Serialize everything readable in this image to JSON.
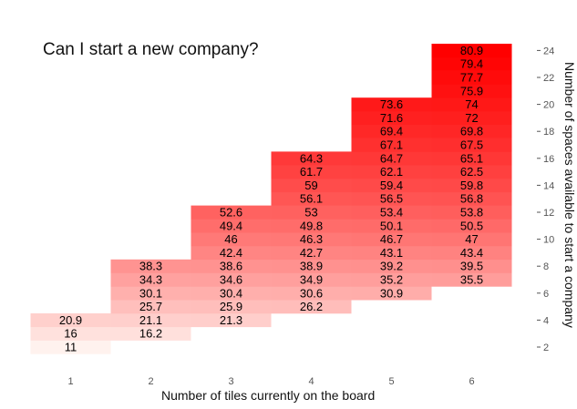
{
  "chart_data": {
    "type": "heatmap",
    "title": "Can I start a new company?",
    "xlabel": "Number of tiles currently on the board",
    "ylabel": "Number of spaces available to start a company",
    "x_ticks": [
      "1",
      "2",
      "3",
      "4",
      "5",
      "6"
    ],
    "y_ticks": [
      "2",
      "4",
      "6",
      "8",
      "10",
      "12",
      "14",
      "16",
      "18",
      "20",
      "22",
      "24"
    ],
    "xlim": [
      0.5,
      6.5
    ],
    "ylim": [
      1,
      25
    ],
    "y_axis_side": "right",
    "colorscale": [
      "#fff2ee",
      "#ff0000"
    ],
    "value_range": [
      11,
      80.9
    ],
    "cells": [
      {
        "x": 1,
        "y": 2,
        "value": 11
      },
      {
        "x": 1,
        "y": 3,
        "value": 16
      },
      {
        "x": 1,
        "y": 4,
        "value": 20.9
      },
      {
        "x": 2,
        "y": 3,
        "value": 16.2
      },
      {
        "x": 2,
        "y": 4,
        "value": 21.1
      },
      {
        "x": 2,
        "y": 5,
        "value": 25.7
      },
      {
        "x": 2,
        "y": 6,
        "value": 30.1
      },
      {
        "x": 2,
        "y": 7,
        "value": 34.3
      },
      {
        "x": 2,
        "y": 8,
        "value": 38.3
      },
      {
        "x": 3,
        "y": 4,
        "value": 21.3
      },
      {
        "x": 3,
        "y": 5,
        "value": 25.9
      },
      {
        "x": 3,
        "y": 6,
        "value": 30.4
      },
      {
        "x": 3,
        "y": 7,
        "value": 34.6
      },
      {
        "x": 3,
        "y": 8,
        "value": 38.6
      },
      {
        "x": 3,
        "y": 9,
        "value": 42.4
      },
      {
        "x": 3,
        "y": 10,
        "value": 46
      },
      {
        "x": 3,
        "y": 11,
        "value": 49.4
      },
      {
        "x": 3,
        "y": 12,
        "value": 52.6
      },
      {
        "x": 4,
        "y": 5,
        "value": 26.2
      },
      {
        "x": 4,
        "y": 6,
        "value": 30.6
      },
      {
        "x": 4,
        "y": 7,
        "value": 34.9
      },
      {
        "x": 4,
        "y": 8,
        "value": 38.9
      },
      {
        "x": 4,
        "y": 9,
        "value": 42.7
      },
      {
        "x": 4,
        "y": 10,
        "value": 46.3
      },
      {
        "x": 4,
        "y": 11,
        "value": 49.8
      },
      {
        "x": 4,
        "y": 12,
        "value": 53
      },
      {
        "x": 4,
        "y": 13,
        "value": 56.1
      },
      {
        "x": 4,
        "y": 14,
        "value": 59
      },
      {
        "x": 4,
        "y": 15,
        "value": 61.7
      },
      {
        "x": 4,
        "y": 16,
        "value": 64.3
      },
      {
        "x": 5,
        "y": 6,
        "value": 30.9
      },
      {
        "x": 5,
        "y": 7,
        "value": 35.2
      },
      {
        "x": 5,
        "y": 8,
        "value": 39.2
      },
      {
        "x": 5,
        "y": 9,
        "value": 43.1
      },
      {
        "x": 5,
        "y": 10,
        "value": 46.7
      },
      {
        "x": 5,
        "y": 11,
        "value": 50.1
      },
      {
        "x": 5,
        "y": 12,
        "value": 53.4
      },
      {
        "x": 5,
        "y": 13,
        "value": 56.5
      },
      {
        "x": 5,
        "y": 14,
        "value": 59.4
      },
      {
        "x": 5,
        "y": 15,
        "value": 62.1
      },
      {
        "x": 5,
        "y": 16,
        "value": 64.7
      },
      {
        "x": 5,
        "y": 17,
        "value": 67.1
      },
      {
        "x": 5,
        "y": 18,
        "value": 69.4
      },
      {
        "x": 5,
        "y": 19,
        "value": 71.6
      },
      {
        "x": 5,
        "y": 20,
        "value": 73.6
      },
      {
        "x": 6,
        "y": 7,
        "value": 35.5
      },
      {
        "x": 6,
        "y": 8,
        "value": 39.5
      },
      {
        "x": 6,
        "y": 9,
        "value": 43.4
      },
      {
        "x": 6,
        "y": 10,
        "value": 47
      },
      {
        "x": 6,
        "y": 11,
        "value": 50.5
      },
      {
        "x": 6,
        "y": 12,
        "value": 53.8
      },
      {
        "x": 6,
        "y": 13,
        "value": 56.8
      },
      {
        "x": 6,
        "y": 14,
        "value": 59.8
      },
      {
        "x": 6,
        "y": 15,
        "value": 62.5
      },
      {
        "x": 6,
        "y": 16,
        "value": 65.1
      },
      {
        "x": 6,
        "y": 17,
        "value": 67.5
      },
      {
        "x": 6,
        "y": 18,
        "value": 69.8
      },
      {
        "x": 6,
        "y": 19,
        "value": 72
      },
      {
        "x": 6,
        "y": 20,
        "value": 74
      },
      {
        "x": 6,
        "y": 21,
        "value": 75.9
      },
      {
        "x": 6,
        "y": 22,
        "value": 77.7
      },
      {
        "x": 6,
        "y": 23,
        "value": 79.4
      },
      {
        "x": 6,
        "y": 24,
        "value": 80.9
      }
    ]
  }
}
